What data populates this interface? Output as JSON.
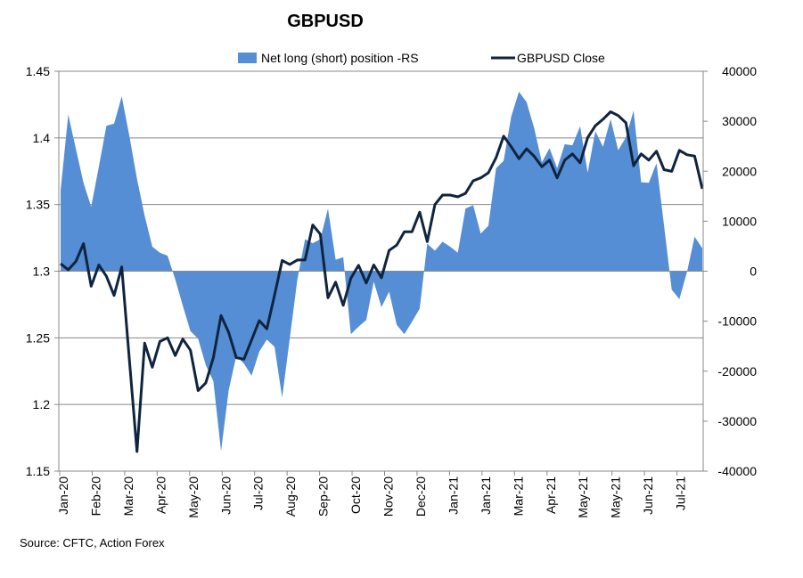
{
  "chart_data": {
    "type": "area+line",
    "title": "GBPUSD",
    "source": "Source: CFTC, Action Forex",
    "legend": {
      "placement": "top",
      "entries": [
        {
          "name": "Net long (short) position -RS",
          "color": "#558ED5",
          "kind": "area"
        },
        {
          "name": "GBPUSD Close",
          "color": "#0F243E",
          "kind": "line"
        }
      ]
    },
    "x_tick_labels": [
      "Jan-20",
      "Feb-20",
      "Mar-20",
      "Apr-20",
      "May-20",
      "Jun-20",
      "Jul-20",
      "Aug-20",
      "Sep-20",
      "Oct-20",
      "Nov-20",
      "Dec-20",
      "Jan-21",
      "Jan-21",
      "Mar-21",
      "Apr-21",
      "May-21",
      "May-21",
      "Jun-21",
      "Jul-21"
    ],
    "left_axis": {
      "ylim": [
        1.15,
        1.45
      ],
      "ticks": [
        "1.15",
        "1.2",
        "1.25",
        "1.3",
        "1.35",
        "1.4",
        "1.45"
      ],
      "grid": true
    },
    "right_axis": {
      "ylim": [
        -40000,
        40000
      ],
      "ticks": [
        "-40000",
        "-30000",
        "-20000",
        "-10000",
        "0",
        "10000",
        "20000",
        "30000",
        "40000"
      ]
    },
    "series": [
      {
        "name": "Net long (short) position -RS",
        "axis": "right",
        "values": [
          16200,
          31300,
          24500,
          17700,
          12900,
          20900,
          29100,
          29500,
          35000,
          27100,
          18500,
          11100,
          4900,
          3700,
          3100,
          -1600,
          -6900,
          -12000,
          -13500,
          -18800,
          -22000,
          -36000,
          -23800,
          -17000,
          -18500,
          -20900,
          -16100,
          -13700,
          -15100,
          -25300,
          -13500,
          -1600,
          6400,
          5600,
          6400,
          12500,
          2300,
          2800,
          -12600,
          -11100,
          -9800,
          -2100,
          -7200,
          -4100,
          -10700,
          -12600,
          -10100,
          -7500,
          5500,
          4100,
          5900,
          4900,
          3700,
          12500,
          13200,
          7500,
          9100,
          20600,
          22100,
          31000,
          35900,
          33800,
          28600,
          21800,
          24600,
          20600,
          25400,
          25200,
          29000,
          19700,
          28000,
          24900,
          30400,
          24200,
          26800,
          32100,
          17800,
          17700,
          21600,
          9100,
          -3700,
          -5600,
          -100,
          6900,
          4600
        ]
      },
      {
        "name": "GBPUSD Close",
        "axis": "left",
        "values": [
          1.3056,
          1.3011,
          1.3073,
          1.3207,
          1.2887,
          1.3047,
          1.2962,
          1.2818,
          1.3033,
          1.234,
          1.1647,
          1.246,
          1.228,
          1.2473,
          1.25,
          1.2367,
          1.2491,
          1.2407,
          1.2104,
          1.2162,
          1.2351,
          1.2667,
          1.254,
          1.2351,
          1.234,
          1.2484,
          1.2629,
          1.2567,
          1.2818,
          1.308,
          1.3051,
          1.3084,
          1.3084,
          1.3347,
          1.3278,
          1.28,
          1.2918,
          1.2744,
          1.2947,
          1.3044,
          1.2911,
          1.3047,
          1.2951,
          1.3156,
          1.3196,
          1.3296,
          1.3296,
          1.3442,
          1.3222,
          1.35,
          1.3571,
          1.3571,
          1.3558,
          1.3584,
          1.3678,
          1.37,
          1.3738,
          1.3851,
          1.4013,
          1.3933,
          1.3844,
          1.3918,
          1.3862,
          1.3784,
          1.3833,
          1.37,
          1.3833,
          1.388,
          1.3813,
          1.4002,
          1.4091,
          1.414,
          1.4196,
          1.4167,
          1.4113,
          1.3791,
          1.388,
          1.3833,
          1.39,
          1.3762,
          1.3749,
          1.3907,
          1.3873,
          1.3864,
          1.3618
        ]
      }
    ]
  }
}
